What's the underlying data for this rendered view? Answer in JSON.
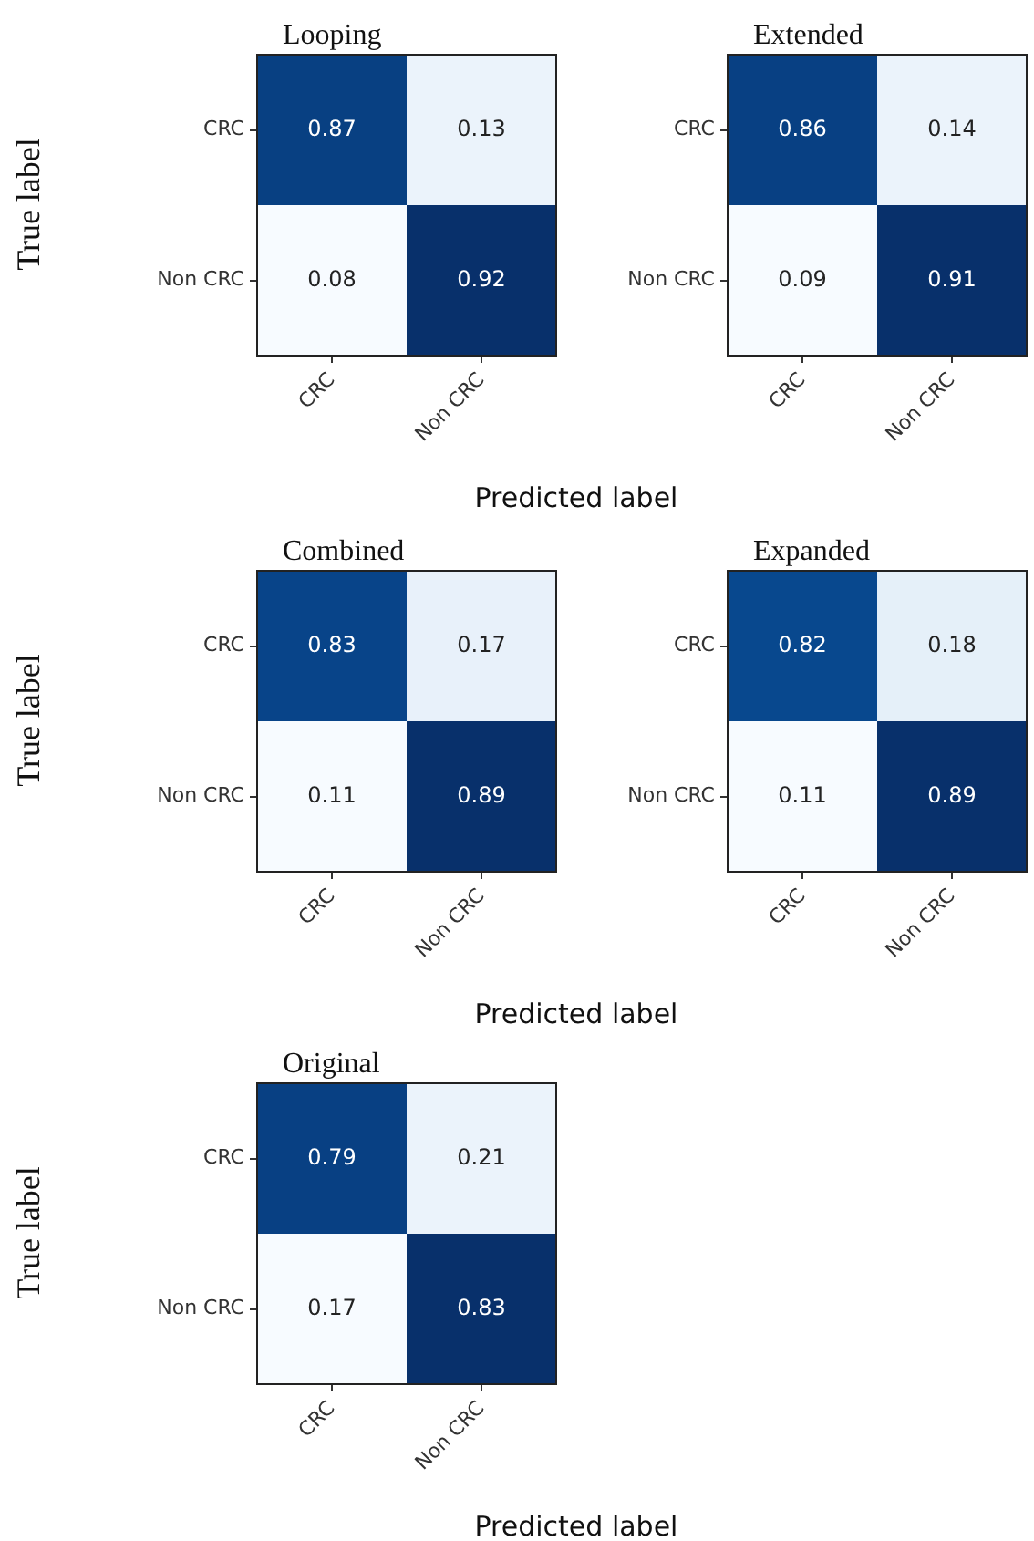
{
  "chart_data": [
    {
      "type": "heatmap",
      "title": "Looping",
      "xlabel": "Predicted label",
      "ylabel": "True label",
      "categories": [
        "CRC",
        "Non CRC"
      ],
      "y_categories": [
        "CRC",
        "Non CRC"
      ],
      "cells": [
        [
          0.87,
          0.13
        ],
        [
          0.08,
          0.92
        ]
      ],
      "data_labels": true
    },
    {
      "type": "heatmap",
      "title": "Extended",
      "categories": [
        "CRC",
        "Non CRC"
      ],
      "y_categories": [
        "CRC",
        "Non CRC"
      ],
      "cells": [
        [
          0.86,
          0.14
        ],
        [
          0.09,
          0.91
        ]
      ],
      "data_labels": true
    },
    {
      "type": "heatmap",
      "title": "Combined",
      "xlabel": "Predicted label",
      "ylabel": "True label",
      "categories": [
        "CRC",
        "Non CRC"
      ],
      "y_categories": [
        "CRC",
        "Non CRC"
      ],
      "cells": [
        [
          0.83,
          0.17
        ],
        [
          0.11,
          0.89
        ]
      ],
      "data_labels": true
    },
    {
      "type": "heatmap",
      "title": "Expanded",
      "categories": [
        "CRC",
        "Non CRC"
      ],
      "y_categories": [
        "CRC",
        "Non CRC"
      ],
      "cells": [
        [
          0.82,
          0.18
        ],
        [
          0.11,
          0.89
        ]
      ],
      "data_labels": true
    },
    {
      "type": "heatmap",
      "title": "Original",
      "xlabel": "Predicted label",
      "ylabel": "True label",
      "categories": [
        "CRC",
        "Non CRC"
      ],
      "y_categories": [
        "CRC",
        "Non CRC"
      ],
      "cells": [
        [
          0.79,
          0.21
        ],
        [
          0.17,
          0.83
        ]
      ],
      "data_labels": true
    }
  ]
}
